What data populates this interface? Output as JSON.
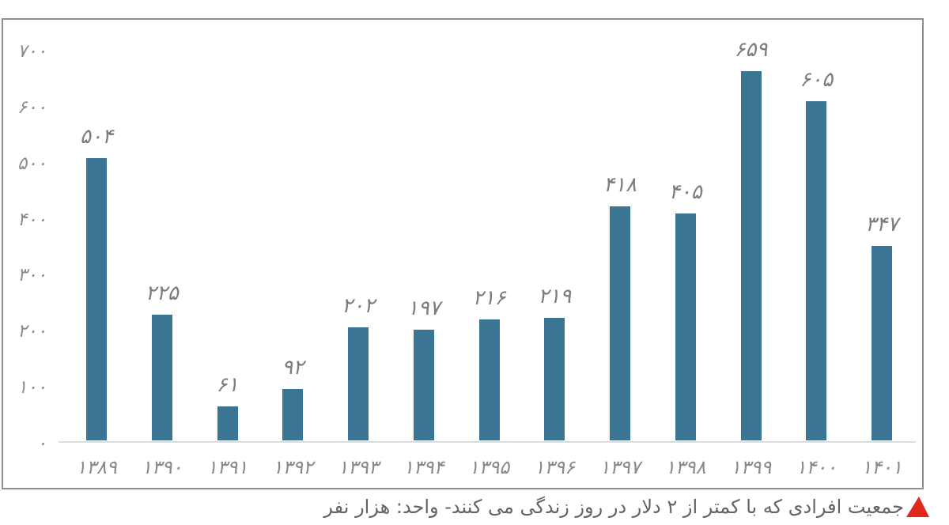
{
  "chart_data": {
    "type": "bar",
    "title": "",
    "xlabel": "",
    "ylabel": "",
    "caption": "جمعیت افرادی که با کمتر از ۲ دلار در روز زندگی می کنند- واحد: هزار نفر",
    "categories": [
      "۱۳۸۹",
      "۱۳۹۰",
      "۱۳۹۱",
      "۱۳۹۲",
      "۱۳۹۳",
      "۱۳۹۴",
      "۱۳۹۵",
      "۱۳۹۶",
      "۱۳۹۷",
      "۱۳۹۸",
      "۱۳۹۹",
      "۱۴۰۰",
      "۱۴۰۱"
    ],
    "values": [
      504,
      225,
      61,
      92,
      202,
      197,
      216,
      219,
      418,
      405,
      659,
      605,
      347
    ],
    "value_labels": [
      "۵۰۴",
      "۲۲۵",
      "۶۱",
      "۹۲",
      "۲۰۲",
      "۱۹۷",
      "۲۱۶",
      "۲۱۹",
      "۴۱۸",
      "۴۰۵",
      "۶۵۹",
      "۶۰۵",
      "۳۴۷"
    ],
    "y_ticks": [
      {
        "value": 700,
        "label": "۷۰۰"
      },
      {
        "value": 600,
        "label": "۶۰۰"
      },
      {
        "value": 500,
        "label": "۵۰۰"
      },
      {
        "value": 400,
        "label": "۴۰۰"
      },
      {
        "value": 300,
        "label": "۳۰۰"
      },
      {
        "value": 200,
        "label": "۲۰۰"
      },
      {
        "value": 100,
        "label": "۱۰۰"
      },
      {
        "value": 0,
        "label": "۰"
      }
    ],
    "ylim": [
      0,
      700
    ],
    "grid": false,
    "legend": false,
    "colors": {
      "bar": "#3a7694",
      "value_label": "#7d7d7d",
      "axis_label": "#8a8a8a",
      "y_tick_label": "#8d8d8d",
      "caption": "#636363",
      "flag": "#e1261c",
      "frame_border": "#8e8e8e",
      "baseline": "#dcdcdc"
    }
  }
}
